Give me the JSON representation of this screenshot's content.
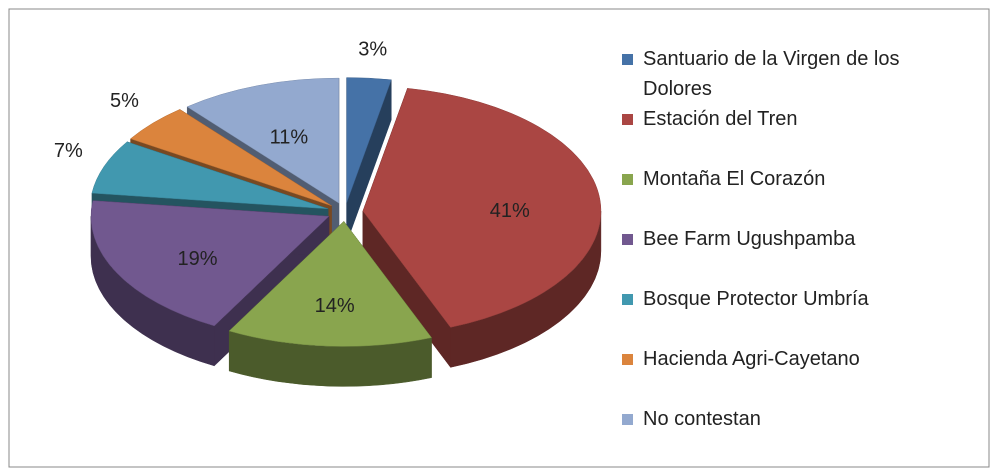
{
  "chart_data": {
    "type": "pie",
    "categories": [
      "Santuario de la Virgen de los Dolores",
      "Estación del Tren",
      "Montaña El Corazón",
      "Bee Farm Ugushpamba",
      "Bosque Protector Umbría",
      "Hacienda Agri-Cayetano",
      "No contestan"
    ],
    "values": [
      3,
      41,
      14,
      19,
      7,
      5,
      11
    ],
    "value_labels": [
      "3%",
      "41%",
      "14%",
      "19%",
      "7%",
      "5%",
      "11%"
    ],
    "colors": [
      "#4572a7",
      "#aa4643",
      "#89a54e",
      "#71588f",
      "#4198af",
      "#db843d",
      "#93a9cf"
    ],
    "legend": "right"
  }
}
